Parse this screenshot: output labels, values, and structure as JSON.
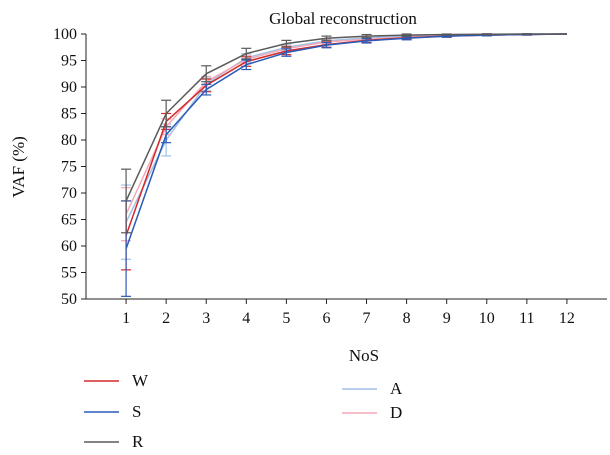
{
  "chart_data": {
    "type": "line",
    "title": "Global reconstruction",
    "xlabel": "NoS",
    "ylabel": "VAF (%)",
    "x": [
      1,
      2,
      3,
      4,
      5,
      6,
      7,
      8,
      9,
      10,
      11,
      12
    ],
    "xlim": [
      0,
      13
    ],
    "ylim": [
      50,
      100
    ],
    "yticks": [
      50,
      55,
      60,
      65,
      70,
      75,
      80,
      85,
      90,
      95,
      100
    ],
    "xticks": [
      1,
      2,
      3,
      4,
      5,
      6,
      7,
      8,
      9,
      10,
      11,
      12
    ],
    "grid": false,
    "legend_position": "bottom",
    "series": [
      {
        "name": "W",
        "color": "#d22a2a",
        "values": [
          62.0,
          83.5,
          90.3,
          94.8,
          96.8,
          98.0,
          98.8,
          99.3,
          99.6,
          99.8,
          99.9,
          100.0
        ],
        "errors": [
          6.5,
          1.5,
          1.2,
          0.9,
          0.7,
          0.5,
          0.4,
          0.3,
          0.2,
          0.15,
          0.1,
          0.0
        ]
      },
      {
        "name": "S",
        "color": "#2a5bb8",
        "values": [
          59.5,
          81.0,
          89.5,
          94.2,
          96.5,
          97.9,
          98.7,
          99.2,
          99.6,
          99.8,
          99.9,
          100.0
        ],
        "errors": [
          9.0,
          1.5,
          1.0,
          0.9,
          0.7,
          0.5,
          0.4,
          0.3,
          0.2,
          0.15,
          0.1,
          0.0
        ]
      },
      {
        "name": "R",
        "color": "#5a5a5a",
        "values": [
          68.5,
          85.0,
          92.5,
          96.3,
          98.2,
          99.2,
          99.6,
          99.8,
          99.9,
          99.95,
          100.0,
          100.0
        ],
        "errors": [
          6.0,
          2.5,
          1.5,
          1.0,
          0.6,
          0.4,
          0.3,
          0.2,
          0.1,
          0.1,
          0.05,
          0.0
        ]
      },
      {
        "name": "A",
        "color": "#9fc2e6",
        "values": [
          64.5,
          80.0,
          90.5,
          95.5,
          97.5,
          98.7,
          99.3,
          99.6,
          99.8,
          99.9,
          100.0,
          100.0
        ],
        "errors": [
          7.0,
          3.0,
          1.2,
          0.8,
          0.6,
          0.4,
          0.3,
          0.2,
          0.1,
          0.1,
          0.05,
          0.0
        ]
      },
      {
        "name": "D",
        "color": "#f4a8b4",
        "values": [
          66.0,
          82.5,
          91.0,
          95.2,
          97.2,
          98.5,
          99.0,
          99.4,
          99.7,
          99.8,
          99.9,
          100.0
        ],
        "errors": [
          5.0,
          1.5,
          1.0,
          0.8,
          0.6,
          0.4,
          0.3,
          0.2,
          0.1,
          0.1,
          0.05,
          0.0
        ]
      }
    ]
  }
}
